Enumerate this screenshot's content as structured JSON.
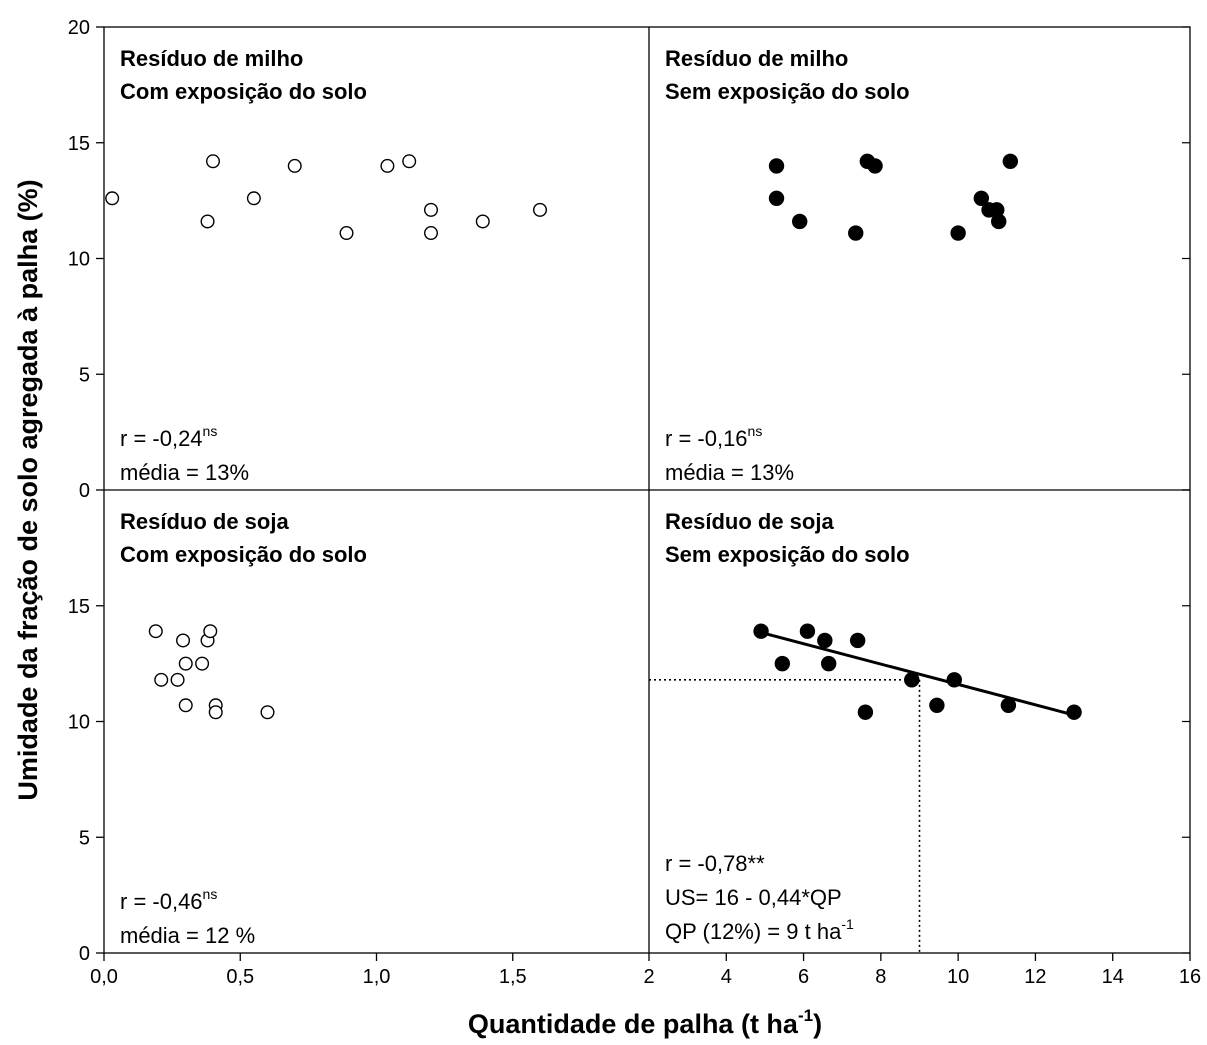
{
  "chart_data": [
    {
      "type": "scatter",
      "panel": "top-left",
      "title_lines": [
        "Resíduo de milho",
        "Com exposição do solo"
      ],
      "marker": "open",
      "xlim": [
        0,
        2
      ],
      "ylim": [
        0,
        20
      ],
      "x_ticks": [
        "0,0",
        "0,5",
        "1,0",
        "1,5",
        "2"
      ],
      "y_ticks": [
        "0",
        "5",
        "10",
        "15",
        "20"
      ],
      "points": [
        [
          0.03,
          12.6
        ],
        [
          0.38,
          11.6
        ],
        [
          0.4,
          14.2
        ],
        [
          0.55,
          12.6
        ],
        [
          0.7,
          14.0
        ],
        [
          0.89,
          11.1
        ],
        [
          1.04,
          14.0
        ],
        [
          1.12,
          14.2
        ],
        [
          1.2,
          12.1
        ],
        [
          1.2,
          11.1
        ],
        [
          1.39,
          11.6
        ],
        [
          1.6,
          12.1
        ]
      ],
      "stat_r": "r = -0,24",
      "stat_r_sup": "ns",
      "stat_mean": "média = 13%"
    },
    {
      "type": "scatter",
      "panel": "top-right",
      "title_lines": [
        "Resíduo de milho",
        "Sem exposição do solo"
      ],
      "marker": "filled",
      "xlim": [
        2,
        16
      ],
      "ylim": [
        0,
        20
      ],
      "points": [
        [
          5.3,
          14.0
        ],
        [
          5.3,
          12.6
        ],
        [
          5.9,
          11.6
        ],
        [
          7.35,
          11.1
        ],
        [
          7.65,
          14.2
        ],
        [
          7.85,
          14.0
        ],
        [
          10.0,
          11.1
        ],
        [
          10.6,
          12.6
        ],
        [
          10.8,
          12.1
        ],
        [
          11.0,
          12.1
        ],
        [
          11.05,
          11.6
        ],
        [
          11.35,
          14.2
        ]
      ],
      "stat_r": "r = -0,16",
      "stat_r_sup": "ns",
      "stat_mean": "média = 13%"
    },
    {
      "type": "scatter",
      "panel": "bottom-left",
      "title_lines": [
        "Resíduo  de soja",
        "Com exposição do solo"
      ],
      "marker": "open",
      "xlim": [
        0,
        2
      ],
      "ylim": [
        0,
        20
      ],
      "points": [
        [
          0.19,
          13.9
        ],
        [
          0.21,
          11.8
        ],
        [
          0.27,
          11.8
        ],
        [
          0.29,
          13.5
        ],
        [
          0.3,
          12.5
        ],
        [
          0.3,
          10.7
        ],
        [
          0.36,
          12.5
        ],
        [
          0.38,
          13.5
        ],
        [
          0.39,
          13.9
        ],
        [
          0.41,
          10.7
        ],
        [
          0.41,
          10.4
        ],
        [
          0.6,
          10.4
        ]
      ],
      "stat_r": "r = -0,46",
      "stat_r_sup": "ns",
      "stat_mean": "média = 12 %"
    },
    {
      "type": "scatter",
      "panel": "bottom-right",
      "title_lines": [
        "Resíduo de soja",
        "Sem exposição do solo"
      ],
      "marker": "filled",
      "xlim": [
        2,
        16
      ],
      "ylim": [
        0,
        20
      ],
      "x_ticks": [
        "2",
        "4",
        "6",
        "8",
        "10",
        "12",
        "14",
        "16"
      ],
      "points": [
        [
          4.9,
          13.9
        ],
        [
          5.45,
          12.5
        ],
        [
          6.1,
          13.9
        ],
        [
          6.55,
          13.5
        ],
        [
          6.65,
          12.5
        ],
        [
          7.4,
          13.5
        ],
        [
          7.6,
          10.4
        ],
        [
          8.8,
          11.8
        ],
        [
          9.45,
          10.7
        ],
        [
          9.9,
          11.8
        ],
        [
          11.3,
          10.7
        ],
        [
          13.0,
          10.4
        ]
      ],
      "regression": {
        "intercept": 16,
        "slope": -0.44,
        "x_range": [
          4.9,
          13.0
        ]
      },
      "reference": {
        "x": 9,
        "y": 11.8
      },
      "stat_r": "r = -0,78**",
      "stat_eq": "US= 16 - 0,44*QP",
      "stat_qp": "QP (12%) = 9 t ha",
      "stat_qp_sup": "-1"
    }
  ],
  "axes": {
    "xlabel": "Quantidade de palha (t ha",
    "xlabel_sup": "-1",
    "xlabel_close": ")",
    "ylabel": "Umidade da fração de solo agregada à palha (%)"
  }
}
